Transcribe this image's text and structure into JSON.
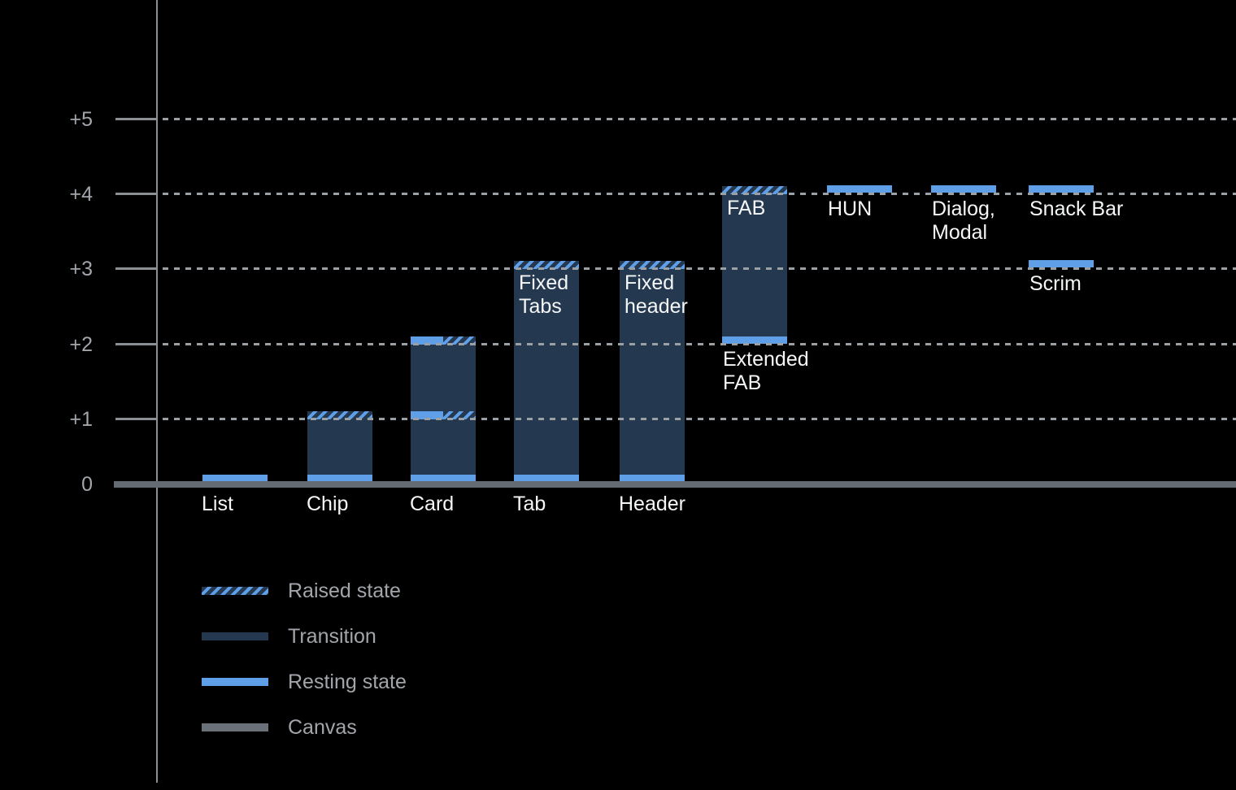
{
  "colors": {
    "background": "#000000",
    "resting_blue": "#5F9FE8",
    "transition_navy": "#24384F",
    "canvas_gray": "#646B73",
    "gridline_gray": "#9BA0A5",
    "axis_gray": "#8A8F94",
    "muted_text_gray": "#A2A6AB",
    "bar_label_white": "#F5F6F7"
  },
  "chart_data": {
    "type": "bar",
    "y_axis": {
      "tick_labels": [
        "0",
        "+1",
        "+2",
        "+3",
        "+4",
        "+5"
      ],
      "range": [
        0,
        5.6
      ],
      "gridlines": "dotted horizontal lines at +1 through +5, solid canvas baseline at 0"
    },
    "bars": [
      {
        "name": "List",
        "column": 0,
        "below_axis_label": "List",
        "states": [
          {
            "level": 0,
            "type": "resting"
          }
        ]
      },
      {
        "name": "Chip",
        "column": 1,
        "below_axis_label": "Chip",
        "states": [
          {
            "level": 0,
            "type": "resting"
          },
          {
            "level": 1,
            "type": "raised"
          }
        ],
        "transition": [
          0,
          1
        ]
      },
      {
        "name": "Card",
        "column": 2,
        "below_axis_label": "Card",
        "states": [
          {
            "level": 0,
            "type": "resting"
          },
          {
            "level": 1,
            "type": "resting+raised"
          },
          {
            "level": 2,
            "type": "resting+raised"
          }
        ],
        "transition": [
          0,
          2
        ]
      },
      {
        "name": "Tab",
        "column": 3,
        "below_axis_label": "Tab",
        "inner_label": "Fixed\nTabs",
        "states": [
          {
            "level": 0,
            "type": "resting"
          },
          {
            "level": 3,
            "type": "raised"
          }
        ],
        "transition": [
          0,
          3
        ]
      },
      {
        "name": "Header",
        "column": 4,
        "below_axis_label": "Header",
        "inner_label": "Fixed\nheader",
        "states": [
          {
            "level": 0,
            "type": "resting"
          },
          {
            "level": 3,
            "type": "raised"
          }
        ],
        "transition": [
          0,
          3
        ]
      },
      {
        "name": "Extended FAB",
        "column": 5,
        "inner_label": "FAB",
        "below_bar_label": "Extended\nFAB",
        "states": [
          {
            "level": 2,
            "type": "resting"
          },
          {
            "level": 4,
            "type": "raised"
          }
        ],
        "transition": [
          2,
          4
        ]
      },
      {
        "name": "HUN",
        "column": 6,
        "below_bar_label": "HUN",
        "states": [
          {
            "level": 4,
            "type": "resting"
          }
        ]
      },
      {
        "name": "Dialog, Modal",
        "column": 7,
        "below_bar_label": "Dialog,\nModal",
        "states": [
          {
            "level": 4,
            "type": "resting"
          }
        ]
      },
      {
        "name": "Snack Bar",
        "column": 8,
        "below_bar_label": "Snack Bar",
        "states": [
          {
            "level": 4,
            "type": "resting"
          }
        ]
      },
      {
        "name": "Scrim",
        "column": 8,
        "below_bar_label": "Scrim",
        "states": [
          {
            "level": 3,
            "type": "resting"
          }
        ]
      }
    ],
    "legend": [
      {
        "key": "raised",
        "label": "Raised state"
      },
      {
        "key": "transition",
        "label": "Transition"
      },
      {
        "key": "resting",
        "label": "Resting state"
      },
      {
        "key": "canvas",
        "label": "Canvas"
      }
    ]
  }
}
